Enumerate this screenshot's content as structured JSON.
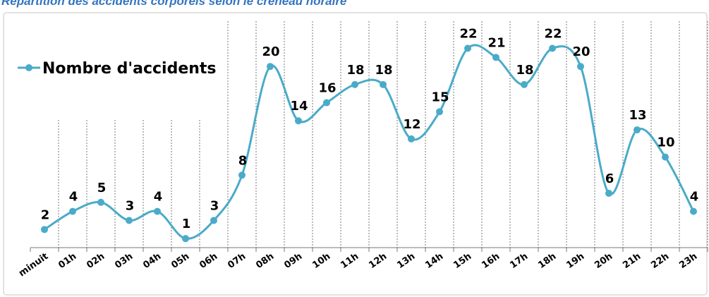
{
  "chart_data": {
    "type": "line",
    "title": "Répartition des accidents corporels selon le créneau horaire",
    "categories": [
      "minuit",
      "01h",
      "02h",
      "03h",
      "04h",
      "05h",
      "06h",
      "07h",
      "08h",
      "09h",
      "10h",
      "11h",
      "12h",
      "13h",
      "14h",
      "15h",
      "16h",
      "17h",
      "18h",
      "19h",
      "20h",
      "21h",
      "22h",
      "23h"
    ],
    "series": [
      {
        "name": "Nombre d'accidents",
        "color": "#4aabc8",
        "values": [
          2,
          4,
          5,
          3,
          4,
          1,
          3,
          8,
          20,
          14,
          16,
          18,
          18,
          12,
          15,
          22,
          21,
          18,
          22,
          20,
          6,
          13,
          10,
          4
        ]
      }
    ],
    "ylim": [
      0,
      25
    ],
    "legend": "top-left",
    "data_labels": true
  }
}
